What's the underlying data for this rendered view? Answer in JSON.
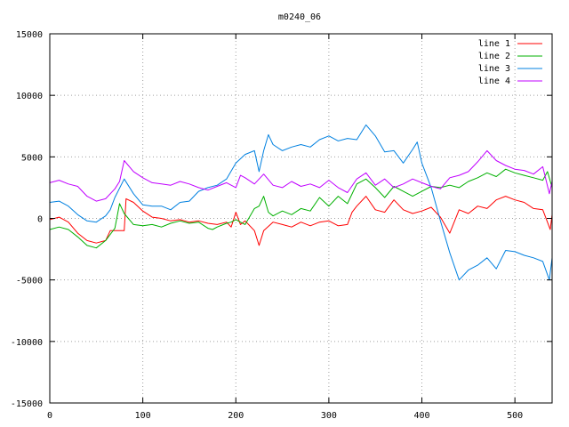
{
  "chart_data": {
    "type": "line",
    "title": "m0240_06",
    "xlabel": "",
    "ylabel": "",
    "xlim": [
      0,
      540
    ],
    "ylim": [
      -15000,
      15000
    ],
    "xticks": [
      0,
      100,
      200,
      300,
      400,
      500
    ],
    "yticks": [
      -15000,
      -10000,
      -5000,
      0,
      5000,
      10000,
      15000
    ],
    "grid": true,
    "legend_position": "top-right",
    "series": [
      {
        "name": "line 1",
        "color": "#ff0000",
        "points": [
          [
            0,
            -100
          ],
          [
            10,
            100
          ],
          [
            20,
            -300
          ],
          [
            30,
            -1200
          ],
          [
            40,
            -1800
          ],
          [
            50,
            -2000
          ],
          [
            60,
            -1800
          ],
          [
            65,
            -1000
          ],
          [
            70,
            -1000
          ],
          [
            80,
            -1000
          ],
          [
            82,
            1600
          ],
          [
            90,
            1300
          ],
          [
            100,
            600
          ],
          [
            110,
            100
          ],
          [
            120,
            0
          ],
          [
            130,
            -200
          ],
          [
            140,
            -100
          ],
          [
            150,
            -300
          ],
          [
            160,
            -200
          ],
          [
            170,
            -400
          ],
          [
            180,
            -500
          ],
          [
            190,
            -300
          ],
          [
            195,
            -700
          ],
          [
            200,
            500
          ],
          [
            205,
            -500
          ],
          [
            210,
            -200
          ],
          [
            220,
            -1000
          ],
          [
            225,
            -2200
          ],
          [
            230,
            -1000
          ],
          [
            240,
            -300
          ],
          [
            250,
            -500
          ],
          [
            260,
            -700
          ],
          [
            270,
            -300
          ],
          [
            280,
            -600
          ],
          [
            290,
            -300
          ],
          [
            300,
            -200
          ],
          [
            310,
            -600
          ],
          [
            320,
            -500
          ],
          [
            325,
            500
          ],
          [
            330,
            1000
          ],
          [
            340,
            1800
          ],
          [
            350,
            700
          ],
          [
            360,
            500
          ],
          [
            370,
            1500
          ],
          [
            380,
            700
          ],
          [
            390,
            400
          ],
          [
            400,
            600
          ],
          [
            410,
            900
          ],
          [
            420,
            100
          ],
          [
            430,
            -1200
          ],
          [
            440,
            700
          ],
          [
            450,
            400
          ],
          [
            460,
            1000
          ],
          [
            470,
            800
          ],
          [
            480,
            1500
          ],
          [
            490,
            1800
          ],
          [
            500,
            1500
          ],
          [
            510,
            1300
          ],
          [
            520,
            800
          ],
          [
            530,
            700
          ],
          [
            538,
            -900
          ],
          [
            540,
            300
          ]
        ]
      },
      {
        "name": "line 2",
        "color": "#00b000",
        "points": [
          [
            0,
            -900
          ],
          [
            10,
            -700
          ],
          [
            20,
            -900
          ],
          [
            30,
            -1500
          ],
          [
            40,
            -2200
          ],
          [
            50,
            -2400
          ],
          [
            60,
            -1800
          ],
          [
            70,
            -800
          ],
          [
            75,
            1200
          ],
          [
            80,
            400
          ],
          [
            90,
            -500
          ],
          [
            100,
            -600
          ],
          [
            110,
            -500
          ],
          [
            120,
            -700
          ],
          [
            130,
            -400
          ],
          [
            140,
            -200
          ],
          [
            150,
            -400
          ],
          [
            160,
            -300
          ],
          [
            170,
            -800
          ],
          [
            175,
            -900
          ],
          [
            180,
            -700
          ],
          [
            190,
            -400
          ],
          [
            195,
            -300
          ],
          [
            200,
            -100
          ],
          [
            210,
            -500
          ],
          [
            220,
            800
          ],
          [
            225,
            1000
          ],
          [
            230,
            1800
          ],
          [
            235,
            500
          ],
          [
            240,
            200
          ],
          [
            250,
            600
          ],
          [
            260,
            300
          ],
          [
            270,
            800
          ],
          [
            280,
            600
          ],
          [
            290,
            1700
          ],
          [
            300,
            1000
          ],
          [
            310,
            1800
          ],
          [
            320,
            1200
          ],
          [
            330,
            2800
          ],
          [
            340,
            3200
          ],
          [
            350,
            2500
          ],
          [
            360,
            1700
          ],
          [
            370,
            2600
          ],
          [
            380,
            2200
          ],
          [
            390,
            1800
          ],
          [
            400,
            2200
          ],
          [
            410,
            2600
          ],
          [
            420,
            2500
          ],
          [
            430,
            2700
          ],
          [
            440,
            2500
          ],
          [
            450,
            3000
          ],
          [
            460,
            3300
          ],
          [
            470,
            3700
          ],
          [
            480,
            3400
          ],
          [
            490,
            4000
          ],
          [
            500,
            3700
          ],
          [
            510,
            3500
          ],
          [
            520,
            3300
          ],
          [
            530,
            3100
          ],
          [
            535,
            3800
          ],
          [
            540,
            2500
          ]
        ]
      },
      {
        "name": "line 3",
        "color": "#0080e0",
        "points": [
          [
            0,
            1300
          ],
          [
            10,
            1400
          ],
          [
            20,
            1000
          ],
          [
            30,
            300
          ],
          [
            40,
            -200
          ],
          [
            50,
            -300
          ],
          [
            60,
            200
          ],
          [
            65,
            700
          ],
          [
            70,
            1700
          ],
          [
            80,
            3200
          ],
          [
            90,
            2000
          ],
          [
            100,
            1100
          ],
          [
            110,
            1000
          ],
          [
            120,
            1000
          ],
          [
            130,
            700
          ],
          [
            140,
            1300
          ],
          [
            150,
            1400
          ],
          [
            160,
            2200
          ],
          [
            170,
            2500
          ],
          [
            180,
            2700
          ],
          [
            190,
            3200
          ],
          [
            200,
            4500
          ],
          [
            210,
            5200
          ],
          [
            220,
            5500
          ],
          [
            225,
            3800
          ],
          [
            230,
            5500
          ],
          [
            235,
            6800
          ],
          [
            240,
            6000
          ],
          [
            250,
            5500
          ],
          [
            260,
            5800
          ],
          [
            270,
            6000
          ],
          [
            280,
            5800
          ],
          [
            290,
            6400
          ],
          [
            300,
            6700
          ],
          [
            310,
            6300
          ],
          [
            320,
            6500
          ],
          [
            330,
            6400
          ],
          [
            340,
            7600
          ],
          [
            350,
            6700
          ],
          [
            360,
            5400
          ],
          [
            370,
            5500
          ],
          [
            380,
            4500
          ],
          [
            390,
            5600
          ],
          [
            395,
            6200
          ],
          [
            400,
            4500
          ],
          [
            410,
            2500
          ],
          [
            420,
            -200
          ],
          [
            430,
            -2800
          ],
          [
            440,
            -5000
          ],
          [
            450,
            -4200
          ],
          [
            460,
            -3800
          ],
          [
            470,
            -3200
          ],
          [
            480,
            -4100
          ],
          [
            490,
            -2600
          ],
          [
            500,
            -2700
          ],
          [
            510,
            -3000
          ],
          [
            520,
            -3200
          ],
          [
            530,
            -3500
          ],
          [
            537,
            -5000
          ],
          [
            540,
            -3200
          ]
        ]
      },
      {
        "name": "line 4",
        "color": "#c000ff",
        "points": [
          [
            0,
            2900
          ],
          [
            10,
            3100
          ],
          [
            20,
            2800
          ],
          [
            30,
            2600
          ],
          [
            40,
            1800
          ],
          [
            50,
            1400
          ],
          [
            60,
            1600
          ],
          [
            70,
            2400
          ],
          [
            75,
            3000
          ],
          [
            80,
            4700
          ],
          [
            90,
            3800
          ],
          [
            100,
            3300
          ],
          [
            110,
            2900
          ],
          [
            120,
            2800
          ],
          [
            130,
            2700
          ],
          [
            140,
            3000
          ],
          [
            150,
            2800
          ],
          [
            160,
            2500
          ],
          [
            170,
            2300
          ],
          [
            180,
            2600
          ],
          [
            190,
            2900
          ],
          [
            200,
            2500
          ],
          [
            205,
            3500
          ],
          [
            210,
            3300
          ],
          [
            220,
            2800
          ],
          [
            230,
            3600
          ],
          [
            240,
            2700
          ],
          [
            250,
            2500
          ],
          [
            260,
            3000
          ],
          [
            270,
            2600
          ],
          [
            280,
            2800
          ],
          [
            290,
            2500
          ],
          [
            300,
            3100
          ],
          [
            310,
            2500
          ],
          [
            320,
            2100
          ],
          [
            330,
            3200
          ],
          [
            340,
            3700
          ],
          [
            350,
            2700
          ],
          [
            360,
            3200
          ],
          [
            370,
            2500
          ],
          [
            380,
            2800
          ],
          [
            390,
            3200
          ],
          [
            400,
            2900
          ],
          [
            410,
            2600
          ],
          [
            420,
            2400
          ],
          [
            430,
            3300
          ],
          [
            440,
            3500
          ],
          [
            450,
            3800
          ],
          [
            460,
            4600
          ],
          [
            470,
            5500
          ],
          [
            480,
            4700
          ],
          [
            490,
            4300
          ],
          [
            500,
            4000
          ],
          [
            510,
            3900
          ],
          [
            520,
            3600
          ],
          [
            530,
            4200
          ],
          [
            537,
            2000
          ],
          [
            540,
            3000
          ]
        ]
      }
    ]
  }
}
